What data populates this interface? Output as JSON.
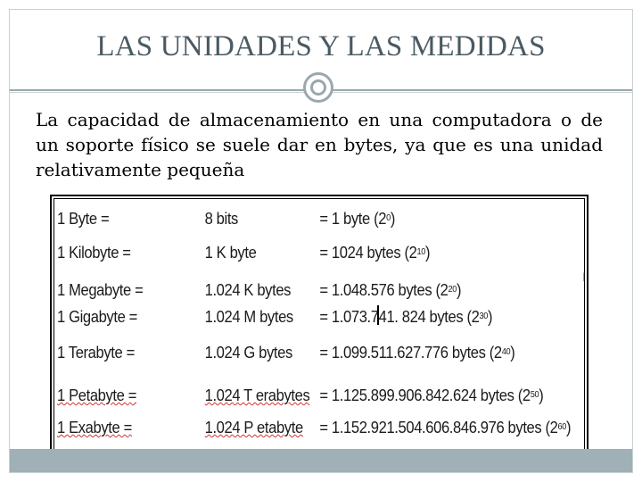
{
  "slide": {
    "title": "LAS UNIDADES Y LAS MEDIDAS",
    "body": "La capacidad de almacenamiento en una computadora o de un soporte físico se suele dar en bytes, ya que es una unidad relativamente pequeña"
  },
  "units_table": {
    "rows": [
      {
        "unit": "1 Byte =",
        "equiv": "8 bits",
        "value": "= 1 byte (2",
        "exp": "0",
        "close": ")"
      },
      {
        "unit": "1 Kilobyte =",
        "equiv": "1 K byte",
        "value": "= 1024 bytes (2",
        "exp": "10",
        "close": ")"
      },
      {
        "unit": "1 Megabyte =",
        "equiv": "1.024 K bytes",
        "value": "= 1.048.576 bytes (2",
        "exp": "20",
        "close": ")"
      },
      {
        "unit": "1 Gigabyte =",
        "equiv": "1.024 M bytes",
        "value": "= 1.073.741. 824 bytes (2",
        "exp": "30",
        "close": ")"
      },
      {
        "unit": "1 Terabyte =",
        "equiv": "1.024 G bytes",
        "value": "= 1.099.511.627.776 bytes (2",
        "exp": "40",
        "close": ")"
      },
      {
        "unit": "1 Petabyte =",
        "equiv": "1.024 T erabytes",
        "value": "= 1.125.899.906.842.624 bytes (2",
        "exp": "50",
        "close": ")"
      },
      {
        "unit": "1 Exabyte =",
        "equiv": "1.024 P etabyte",
        "value": "= 1.152.921.504.606.846.976 bytes (2",
        "exp": "60",
        "close": ")"
      }
    ]
  },
  "colors": {
    "title": "#4a5a63",
    "rule": "#9aa8ae",
    "footer": "#9fb0b6"
  }
}
